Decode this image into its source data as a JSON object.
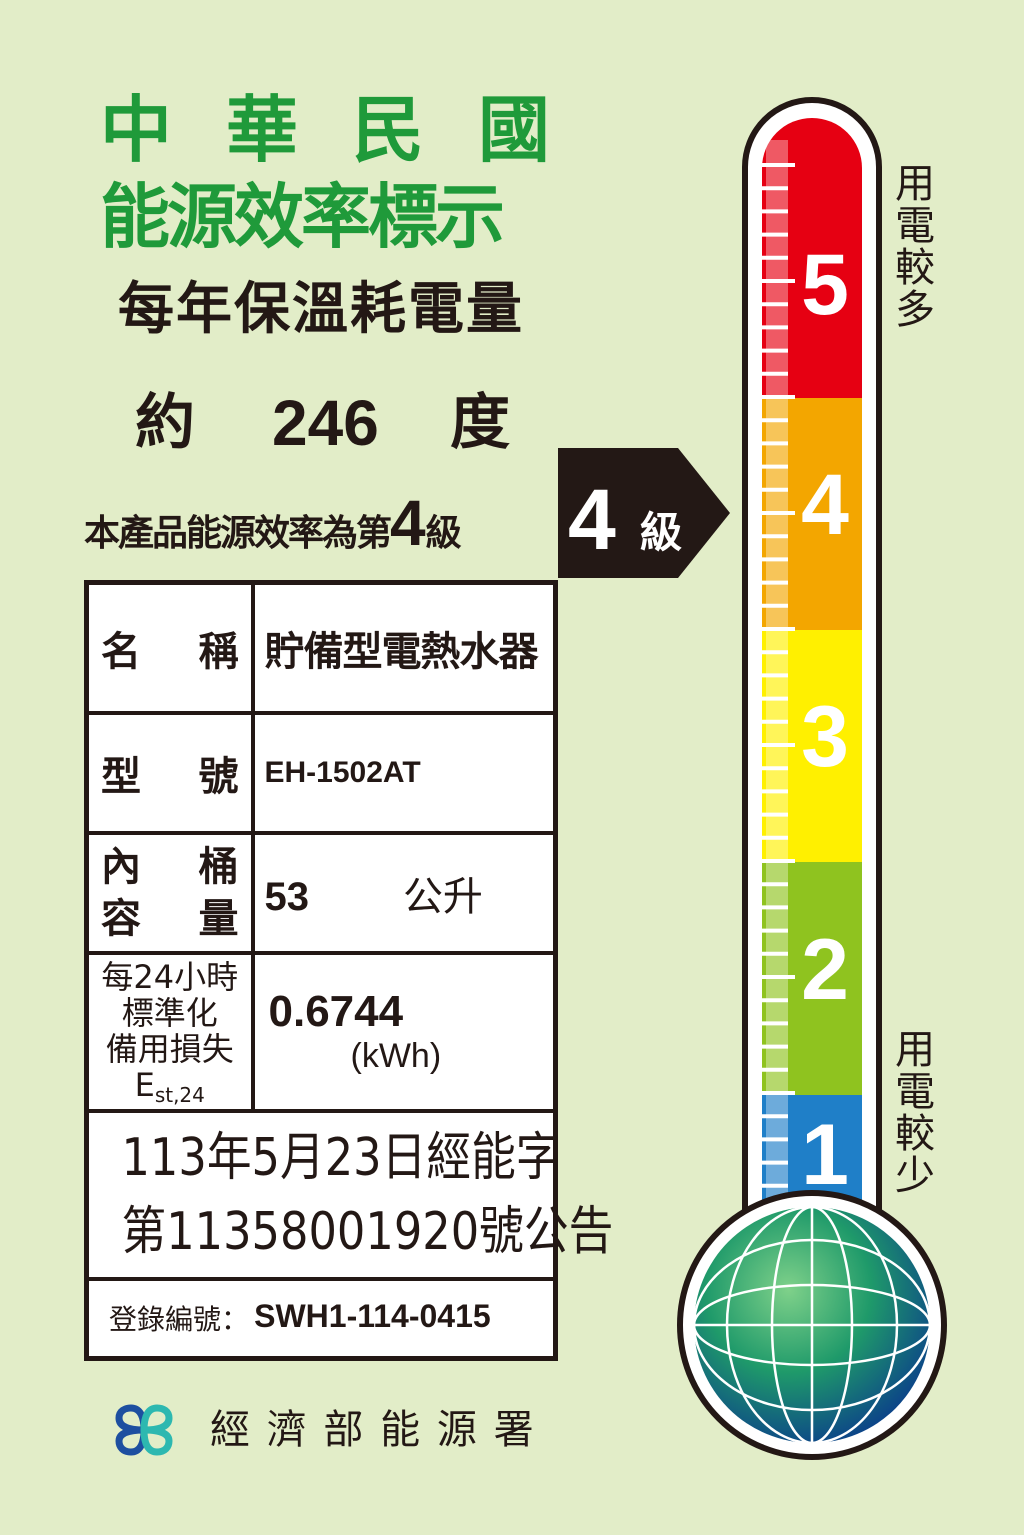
{
  "header": {
    "country": [
      "中",
      "華",
      "民",
      "國"
    ],
    "label_title": "能源效率標示",
    "metric_title": "每年保溫耗電量",
    "approx_prefix": "約",
    "annual_consumption": "246",
    "unit": "度",
    "grade_sentence_prefix": "本產品能源效率為第",
    "grade": "4",
    "grade_suffix": "級"
  },
  "badge": {
    "grade": "4",
    "suffix": "級"
  },
  "table": {
    "name_label": [
      "名",
      "稱"
    ],
    "name_value": "貯備型電熱水器",
    "model_label": [
      "型",
      "號"
    ],
    "model_value": "EH-1502AT",
    "capacity_label": [
      "內",
      "桶",
      "容",
      "量"
    ],
    "capacity_value": "53",
    "capacity_unit": "公升",
    "standby_label": [
      "每24小時",
      "標準化",
      "備用損失"
    ],
    "standby_symbol": "E",
    "standby_subscript": "st,24",
    "standby_value": "0.6744",
    "standby_unit": "(kWh)",
    "notice_line1": "113年5月23日經能字",
    "notice_line2": "第11358001920號公告",
    "registration_label": "登錄編號：",
    "registration_value": "SWH1-114-0415"
  },
  "scale": {
    "levels": [
      "5",
      "4",
      "3",
      "2",
      "1"
    ],
    "colors": {
      "5": "#e60012",
      "4": "#f3a600",
      "3": "#fff000",
      "2": "#8fc31f",
      "1": "#1f7fc8"
    },
    "top_text": "用電較多",
    "bottom_text": "用電較少",
    "current_level": 4
  },
  "footer": {
    "agency": "經 濟 部 能 源 署",
    "logo_colors": [
      "#1d4fa0",
      "#2db8b0"
    ]
  },
  "colors": {
    "background": "#e2edc8",
    "title_green": "#1f9a3a"
  }
}
